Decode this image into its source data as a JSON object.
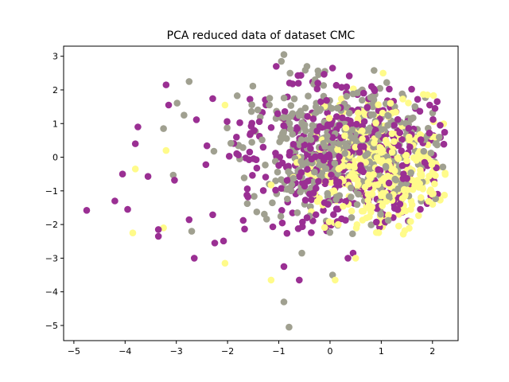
{
  "chart_data": {
    "type": "scatter",
    "title": "PCA reduced data of dataset CMC",
    "xlabel": "",
    "ylabel": "",
    "xlim": [
      -5.2,
      2.5
    ],
    "ylim": [
      -5.45,
      3.3
    ],
    "xticks": [
      -5,
      -4,
      -3,
      -2,
      -1,
      0,
      1,
      2
    ],
    "yticks": [
      -5,
      -4,
      -3,
      -2,
      -1,
      0,
      1,
      2,
      3
    ],
    "grid": false,
    "legend": "none",
    "colors": [
      "#9a2f93",
      "#fffb8a",
      "#a0a090"
    ],
    "seed": 7,
    "series_generation": "per-point values are rendered by the script with approximate cluster placements; coordinates approximate the pictured cloud",
    "clusters": [
      {
        "color_index": 0,
        "n": 420,
        "center": [
          0.2,
          0.1
        ],
        "spread": [
          1.25,
          1.15
        ]
      },
      {
        "color_index": 1,
        "n": 380,
        "center": [
          1.0,
          -0.4
        ],
        "spread": [
          0.75,
          0.95
        ]
      },
      {
        "color_index": 2,
        "n": 450,
        "center": [
          0.1,
          0.3
        ],
        "spread": [
          1.1,
          1.05
        ]
      }
    ],
    "outliers": [
      {
        "color_index": 0,
        "x": -4.75,
        "y": -1.58
      },
      {
        "color_index": 0,
        "x": -4.2,
        "y": -1.3
      },
      {
        "color_index": 0,
        "x": -4.05,
        "y": -0.5
      },
      {
        "color_index": 0,
        "x": -3.95,
        "y": -1.55
      },
      {
        "color_index": 0,
        "x": -3.75,
        "y": 0.9
      },
      {
        "color_index": 0,
        "x": -3.8,
        "y": 0.4
      },
      {
        "color_index": 0,
        "x": -3.35,
        "y": -2.15
      },
      {
        "color_index": 0,
        "x": -3.35,
        "y": -2.35
      },
      {
        "color_index": 1,
        "x": -3.85,
        "y": -2.25
      },
      {
        "color_index": 1,
        "x": -3.8,
        "y": -0.35
      },
      {
        "color_index": 0,
        "x": -2.65,
        "y": -3.0
      },
      {
        "color_index": 1,
        "x": -2.05,
        "y": -3.15
      },
      {
        "color_index": 0,
        "x": -2.25,
        "y": -2.55
      },
      {
        "color_index": 1,
        "x": -1.15,
        "y": -3.65
      },
      {
        "color_index": 0,
        "x": -0.9,
        "y": -3.25
      },
      {
        "color_index": 2,
        "x": -0.9,
        "y": -4.3
      },
      {
        "color_index": 2,
        "x": -0.8,
        "y": -5.05
      },
      {
        "color_index": 0,
        "x": -0.6,
        "y": -3.65
      },
      {
        "color_index": 2,
        "x": 0.05,
        "y": -3.5
      },
      {
        "color_index": 1,
        "x": 0.1,
        "y": -3.65
      },
      {
        "color_index": 2,
        "x": -0.55,
        "y": -2.85
      },
      {
        "color_index": 0,
        "x": 0.45,
        "y": -2.85
      },
      {
        "color_index": 0,
        "x": 0.35,
        "y": -3.0
      },
      {
        "color_index": 1,
        "x": 0.5,
        "y": -3.0
      },
      {
        "color_index": 2,
        "x": -0.9,
        "y": 3.05
      },
      {
        "color_index": 2,
        "x": -0.95,
        "y": 2.85
      },
      {
        "color_index": 0,
        "x": -1.05,
        "y": 2.7
      },
      {
        "color_index": 2,
        "x": -0.45,
        "y": 2.7
      },
      {
        "color_index": 0,
        "x": 0.05,
        "y": 2.65
      },
      {
        "color_index": 2,
        "x": -0.1,
        "y": 2.55
      },
      {
        "color_index": 0,
        "x": 2.15,
        "y": 0.95
      },
      {
        "color_index": 0,
        "x": 2.05,
        "y": 1.45
      },
      {
        "color_index": 0,
        "x": 2.1,
        "y": -1.1
      },
      {
        "color_index": 1,
        "x": 2.05,
        "y": 0.6
      },
      {
        "color_index": 2,
        "x": 2.1,
        "y": 0.55
      },
      {
        "color_index": 0,
        "x": -3.2,
        "y": 2.15
      },
      {
        "color_index": 0,
        "x": -3.15,
        "y": 1.55
      },
      {
        "color_index": 2,
        "x": -2.75,
        "y": 2.25
      },
      {
        "color_index": 2,
        "x": -2.85,
        "y": 1.25
      },
      {
        "color_index": 1,
        "x": -2.05,
        "y": 1.55
      },
      {
        "color_index": 2,
        "x": -3.25,
        "y": 0.85
      },
      {
        "color_index": 1,
        "x": -3.2,
        "y": 0.2
      },
      {
        "color_index": 1,
        "x": -3.25,
        "y": -2.1
      },
      {
        "color_index": 2,
        "x": -2.7,
        "y": -2.2
      }
    ]
  }
}
